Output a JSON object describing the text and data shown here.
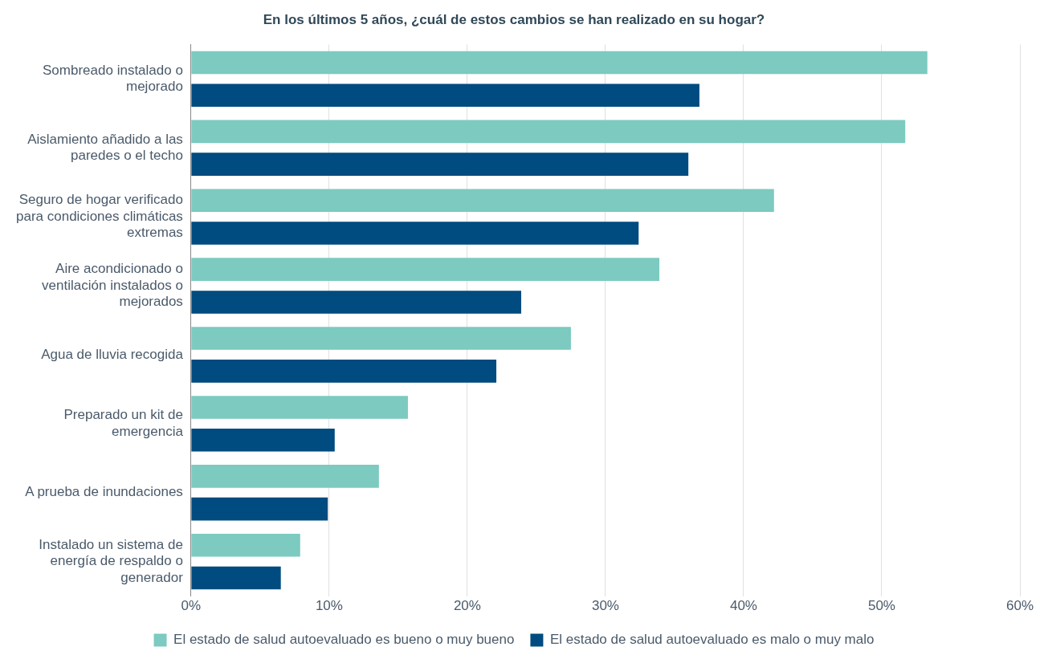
{
  "chart_data": {
    "type": "bar",
    "orientation": "horizontal",
    "title": "En los últimos 5 años, ¿cuál de estos cambios se han realizado en su hogar?",
    "categories": [
      "Sombreado instalado o mejorado",
      "Aislamiento añadido a las paredes o el techo",
      "Seguro de hogar verificado para condiciones climáticas extremas",
      "Aire acondicionado o ventilación instalados o mejorados",
      "Agua de lluvia recogida",
      "Preparado un kit de emergencia",
      "A prueba de inundaciones",
      "Instalado un sistema de energía de respaldo o generador"
    ],
    "series": [
      {
        "name": "El estado de salud autoevaluado es bueno o muy bueno",
        "color": "#7ccac0",
        "values": [
          53.3,
          51.7,
          42.2,
          33.9,
          27.5,
          15.7,
          13.6,
          7.9
        ]
      },
      {
        "name": "El estado de salud autoevaluado es malo o muy malo",
        "color": "#004b7f",
        "values": [
          36.8,
          36.0,
          32.4,
          23.9,
          22.1,
          10.4,
          9.9,
          6.5
        ]
      }
    ],
    "xlim": [
      0,
      60
    ],
    "xticks": [
      {
        "value": 0,
        "label": "0%"
      },
      {
        "value": 10,
        "label": "10%"
      },
      {
        "value": 20,
        "label": "20%"
      },
      {
        "value": 30,
        "label": "30%"
      },
      {
        "value": 40,
        "label": "40%"
      },
      {
        "value": 50,
        "label": "50%"
      },
      {
        "value": 60,
        "label": "60%"
      }
    ],
    "grid": "x",
    "legend": "bottom"
  }
}
